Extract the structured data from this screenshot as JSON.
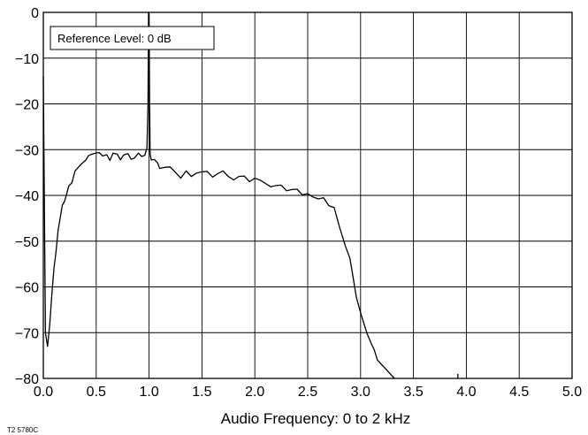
{
  "chart_data": {
    "type": "line",
    "title": "",
    "xlabel": "Audio Frequency: 0 to 2 kHz",
    "ylabel": "",
    "xlim": [
      0,
      5.0
    ],
    "ylim": [
      -80,
      0
    ],
    "x_ticks": [
      "0.0",
      "0.5",
      "1.0",
      "1.5",
      "2.0",
      "2.5",
      "3.0",
      "3.5",
      "4.0",
      "4.5",
      "5.0"
    ],
    "y_ticks": [
      "0",
      "−10",
      "−20",
      "−30",
      "−40",
      "−50",
      "−60",
      "−70",
      "−80"
    ],
    "grid": true,
    "annotation": "Reference Level: 0 dB",
    "footnote": "T2 5780C",
    "line_color": "#000000",
    "series": [
      {
        "x": [
          0.0,
          0.02,
          0.04,
          0.06,
          0.08,
          0.1,
          0.12,
          0.14,
          0.16,
          0.18,
          0.2,
          0.22,
          0.24,
          0.27,
          0.3,
          0.33,
          0.36,
          0.4,
          0.43,
          0.46,
          0.5,
          0.53,
          0.56,
          0.6,
          0.63,
          0.66,
          0.7,
          0.73,
          0.76,
          0.8,
          0.83,
          0.86,
          0.9,
          0.93,
          0.96,
          0.98,
          0.99,
          0.995,
          1.0,
          1.005,
          1.01,
          1.02,
          1.05,
          1.08,
          1.1,
          1.15,
          1.2,
          1.25,
          1.3,
          1.35,
          1.4,
          1.45,
          1.5,
          1.55,
          1.6,
          1.65,
          1.7,
          1.75,
          1.8,
          1.85,
          1.9,
          1.95,
          2.0,
          2.05,
          2.1,
          2.15,
          2.2,
          2.25,
          2.3,
          2.35,
          2.4,
          2.45,
          2.5,
          2.55,
          2.6,
          2.65,
          2.7,
          2.75,
          2.8,
          2.83,
          2.86,
          2.9,
          2.93,
          2.96,
          3.0,
          3.03,
          3.06,
          3.1,
          3.13,
          3.16,
          3.2,
          3.24,
          3.28,
          3.32
        ],
        "values": [
          -14,
          -70,
          -73,
          -68,
          -62,
          -56,
          -52,
          -48,
          -45,
          -42,
          -41,
          -40,
          -38,
          -37,
          -35,
          -34,
          -33,
          -32,
          -31.5,
          -31,
          -30.5,
          -31,
          -31.5,
          -31,
          -32,
          -31,
          -31,
          -32,
          -31.5,
          -31,
          -32,
          -31.5,
          -31,
          -31.5,
          -31,
          -30,
          -20,
          0,
          0,
          -20,
          -31,
          -32,
          -32.5,
          -33,
          -34,
          -33.5,
          -34,
          -35,
          -36,
          -35,
          -36,
          -35,
          -34.5,
          -35,
          -36,
          -35,
          -35,
          -36,
          -36.5,
          -35.5,
          -36,
          -37,
          -36,
          -37,
          -37.5,
          -38,
          -37.5,
          -38,
          -39,
          -38.5,
          -39,
          -40,
          -39.5,
          -40,
          -41,
          -40.5,
          -42,
          -43,
          -47,
          -49,
          -51,
          -54,
          -58,
          -62,
          -66,
          -68,
          -70,
          -72,
          -74,
          -76,
          -77,
          -78,
          -79,
          -80
        ]
      }
    ],
    "markers": [
      {
        "x": 3.92,
        "y": -79
      }
    ]
  }
}
